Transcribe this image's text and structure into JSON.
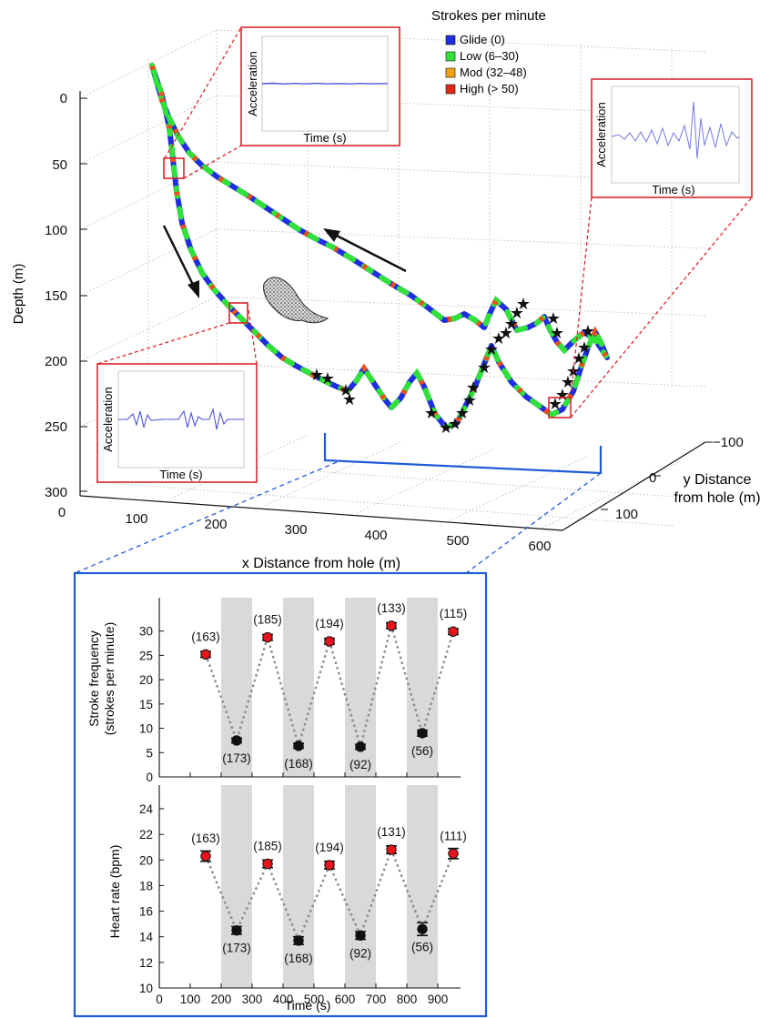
{
  "dive_plot": {
    "ylabel": "Depth (m)",
    "xlabel": "x Distance from hole (m)",
    "zlabel_line1": "y Distance",
    "zlabel_line2": "from hole (m)",
    "legend_title": "Strokes per minute",
    "legend": [
      {
        "label": "Glide (0)",
        "color": "#1f2fe0"
      },
      {
        "label": "Low (6–30)",
        "color": "#32e03a"
      },
      {
        "label": "Mod (32–48)",
        "color": "#f0a010"
      },
      {
        "label": "High (> 50)",
        "color": "#e02818"
      }
    ],
    "depth_ticks": [
      "0",
      "50",
      "100",
      "150",
      "200",
      "250",
      "300"
    ],
    "x_ticks": [
      "0",
      "100",
      "200",
      "300",
      "400",
      "500",
      "600"
    ],
    "y_ticks": [
      "−100",
      "0",
      "100"
    ],
    "inset_ylabel": "Acceleration",
    "inset_xlabel": "Time (s)"
  },
  "chart_data": [
    {
      "type": "scatter",
      "ylabel": "Stroke frequency (strokes per minute)",
      "ylabel_line1": "Stroke frequency",
      "ylabel_line2": "(strokes per minute)",
      "xlabel": "",
      "xlim": [
        0,
        950
      ],
      "ylim": [
        0,
        32
      ],
      "yticks": [
        "0",
        "5",
        "10",
        "15",
        "20",
        "25",
        "30"
      ],
      "shaded_intervals": [
        [
          200,
          300
        ],
        [
          400,
          500
        ],
        [
          600,
          700
        ],
        [
          800,
          900
        ]
      ],
      "series": [
        {
          "color": "#e8141c",
          "x": [
            150,
            350,
            550,
            750,
            950
          ],
          "y": [
            25.2,
            28.7,
            27.9,
            31.1,
            29.9
          ],
          "err": [
            0.6,
            0.6,
            0.6,
            0.6,
            0.6
          ],
          "labels": [
            "(163)",
            "(185)",
            "(194)",
            "(133)",
            "(115)"
          ]
        },
        {
          "color": "#111111",
          "x": [
            250,
            450,
            650,
            850
          ],
          "y": [
            7.5,
            6.4,
            6.2,
            9.0
          ],
          "err": [
            0.5,
            0.5,
            0.5,
            0.6
          ],
          "labels": [
            "(173)",
            "(168)",
            "(92)",
            "(56)"
          ]
        }
      ]
    },
    {
      "type": "scatter",
      "ylabel": "Heart rate (bpm)",
      "xlabel": "Time (s)",
      "xlim": [
        0,
        950
      ],
      "ylim": [
        10,
        24
      ],
      "xticks": [
        "0",
        "100",
        "200",
        "300",
        "400",
        "500",
        "600",
        "700",
        "800",
        "900"
      ],
      "yticks": [
        "10",
        "12",
        "14",
        "16",
        "18",
        "20",
        "22",
        "24"
      ],
      "shaded_intervals": [
        [
          200,
          300
        ],
        [
          400,
          500
        ],
        [
          600,
          700
        ],
        [
          800,
          900
        ]
      ],
      "series": [
        {
          "color": "#e8141c",
          "x": [
            150,
            350,
            550,
            750,
            950
          ],
          "y": [
            20.3,
            19.7,
            19.6,
            20.8,
            20.5
          ],
          "err": [
            0.4,
            0.3,
            0.3,
            0.3,
            0.4
          ],
          "labels": [
            "(163)",
            "(185)",
            "(194)",
            "(131)",
            "(111)"
          ]
        },
        {
          "color": "#111111",
          "x": [
            250,
            450,
            650,
            850
          ],
          "y": [
            14.5,
            13.7,
            14.1,
            14.6
          ],
          "err": [
            0.3,
            0.3,
            0.3,
            0.5
          ],
          "labels": [
            "(173)",
            "(168)",
            "(92)",
            "(56)"
          ]
        }
      ]
    }
  ]
}
